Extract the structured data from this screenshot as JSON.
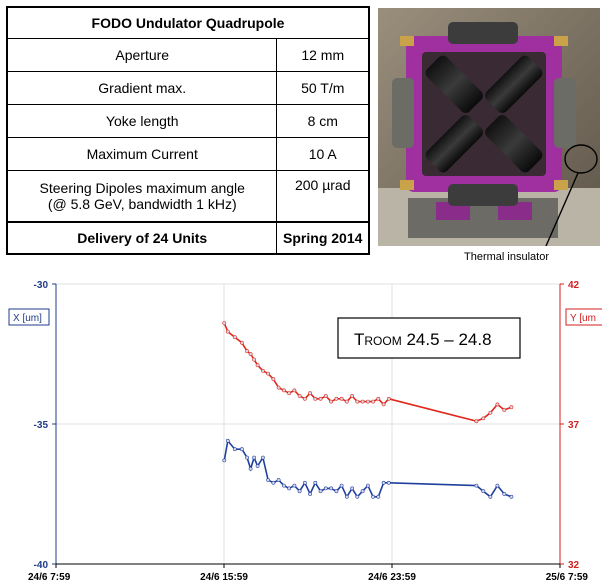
{
  "table": {
    "title": "FODO Undulator Quadrupole",
    "rows": [
      {
        "param": "Aperture",
        "value": "12 mm"
      },
      {
        "param": "Gradient max.",
        "value": "50 T/m"
      },
      {
        "param": "Yoke length",
        "value": "8 cm"
      },
      {
        "param": "Maximum Current",
        "value": "10 A"
      },
      {
        "param": "Steering Dipoles maximum angle\n(@ 5.8 GeV, bandwidth 1 kHz)",
        "value": "200 µrad"
      }
    ],
    "footer": {
      "param": "Delivery of 24 Units",
      "value": "Spring 2014"
    }
  },
  "photo": {
    "caption": "Thermal insulator"
  },
  "colors": {
    "x_series": "#2040a0",
    "y_series": "#e0281c",
    "grid": "#e0e0e0"
  },
  "chart_data": {
    "type": "line",
    "annotation": {
      "main": "T",
      "sub": "ROOM",
      "value": " 24.5 – 24.8"
    },
    "x_ticks": [
      "24/6 7:59",
      "24/6 15:59",
      "24/6 23:59",
      "25/6 7:59"
    ],
    "x_range": [
      "24/6 7:59",
      "25/6 7:59"
    ],
    "y_left": {
      "label": "X [um]",
      "range": [
        -40,
        -30
      ],
      "ticks": [
        "-30",
        "-35",
        "-40"
      ]
    },
    "y_right": {
      "label": "Y [um",
      "range": [
        32,
        42
      ],
      "ticks": [
        "42",
        "37",
        "32"
      ]
    },
    "series": [
      {
        "name": "X [um]",
        "axis": "left",
        "x": [
          "24/6 16:00",
          "24/6 16:10",
          "24/6 16:30",
          "24/6 16:50",
          "24/6 17:05",
          "24/6 17:15",
          "24/6 17:25",
          "24/6 17:35",
          "24/6 17:50",
          "24/6 18:05",
          "24/6 18:20",
          "24/6 18:35",
          "24/6 18:50",
          "24/6 19:05",
          "24/6 19:20",
          "24/6 19:35",
          "24/6 19:50",
          "24/6 20:05",
          "24/6 20:20",
          "24/6 20:35",
          "24/6 20:50",
          "24/6 21:05",
          "24/6 21:20",
          "24/6 21:35",
          "24/6 21:50",
          "24/6 22:05",
          "24/6 22:20",
          "24/6 22:35",
          "24/6 22:50",
          "24/6 23:05",
          "24/6 23:20",
          "24/6 23:35",
          "24/6 23:50",
          "25/6 4:00",
          "25/6 4:20",
          "25/6 4:40",
          "25/6 5:00",
          "25/6 5:20",
          "25/6 5:40"
        ],
        "y": [
          -36.3,
          -35.6,
          -35.9,
          -35.9,
          -36.2,
          -36.6,
          -36.2,
          -36.5,
          -36.2,
          -37.0,
          -37.1,
          -37.0,
          -37.2,
          -37.3,
          -37.2,
          -37.4,
          -37.1,
          -37.5,
          -37.1,
          -37.4,
          -37.3,
          -37.3,
          -37.4,
          -37.2,
          -37.6,
          -37.3,
          -37.6,
          -37.4,
          -37.2,
          -37.6,
          -37.6,
          -37.1,
          -37.1,
          -37.2,
          -37.4,
          -37.6,
          -37.2,
          -37.5,
          -37.6
        ]
      },
      {
        "name": "Y [um",
        "axis": "right",
        "x": [
          "24/6 16:00",
          "24/6 16:10",
          "24/6 16:30",
          "24/6 16:50",
          "24/6 17:05",
          "24/6 17:15",
          "24/6 17:25",
          "24/6 17:35",
          "24/6 17:50",
          "24/6 18:05",
          "24/6 18:20",
          "24/6 18:35",
          "24/6 18:50",
          "24/6 19:05",
          "24/6 19:20",
          "24/6 19:35",
          "24/6 19:50",
          "24/6 20:05",
          "24/6 20:20",
          "24/6 20:35",
          "24/6 20:50",
          "24/6 21:05",
          "24/6 21:20",
          "24/6 21:35",
          "24/6 21:50",
          "24/6 22:05",
          "24/6 22:20",
          "24/6 22:35",
          "24/6 22:50",
          "24/6 23:05",
          "24/6 23:20",
          "24/6 23:35",
          "24/6 23:50",
          "25/6 4:00",
          "25/6 4:20",
          "25/6 4:40",
          "25/6 5:00",
          "25/6 5:20",
          "25/6 5:40"
        ],
        "y": [
          40.6,
          40.3,
          40.1,
          39.9,
          39.6,
          39.5,
          39.3,
          39.1,
          38.9,
          38.8,
          38.6,
          38.3,
          38.2,
          38.1,
          38.2,
          38.0,
          37.9,
          38.1,
          37.9,
          37.9,
          38.0,
          37.8,
          37.9,
          37.9,
          37.8,
          38.0,
          37.8,
          37.8,
          37.8,
          37.8,
          37.9,
          37.7,
          37.9,
          37.1,
          37.2,
          37.4,
          37.7,
          37.5,
          37.6
        ]
      }
    ]
  }
}
